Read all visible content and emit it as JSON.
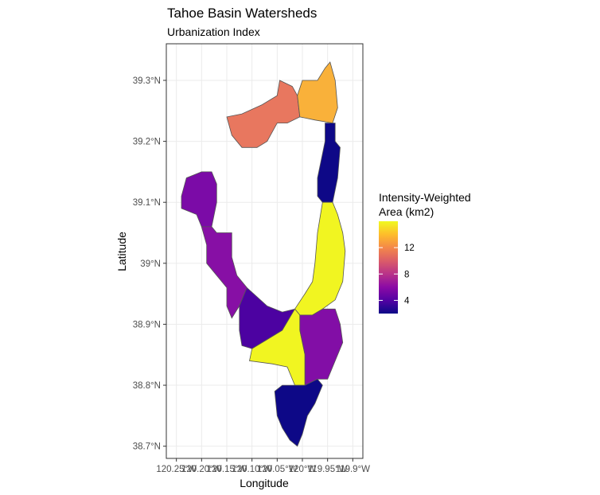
{
  "chart_data": {
    "type": "choropleth",
    "title": "Tahoe Basin Watersheds",
    "subtitle": "Urbanization Index",
    "xlabel": "Longitude",
    "ylabel": "Latitude",
    "xlim": [
      -120.27,
      -119.88
    ],
    "ylim": [
      38.68,
      39.36
    ],
    "x_ticks": [
      {
        "value": -120.25,
        "label": "120.25°W"
      },
      {
        "value": -120.2,
        "label": "120.20°W"
      },
      {
        "value": -120.15,
        "label": "120.15°W"
      },
      {
        "value": -120.1,
        "label": "120.10°W"
      },
      {
        "value": -120.05,
        "label": "120.05°W"
      },
      {
        "value": -120.0,
        "label": "120°W"
      },
      {
        "value": -119.95,
        "label": "119.95°W"
      },
      {
        "value": -119.9,
        "label": "119.9°W"
      }
    ],
    "y_ticks": [
      {
        "value": 39.3,
        "label": "39.3°N"
      },
      {
        "value": 39.2,
        "label": "39.2°N"
      },
      {
        "value": 39.1,
        "label": "39.1°N"
      },
      {
        "value": 39.0,
        "label": "39°N"
      },
      {
        "value": 38.9,
        "label": "38.9°N"
      },
      {
        "value": 38.8,
        "label": "38.8°N"
      },
      {
        "value": 38.7,
        "label": "38.7°N"
      }
    ],
    "grid": true,
    "legend": {
      "title_line1": "Intensity-Weighted",
      "title_line2": "Area (km2)",
      "placement": "right",
      "range": [
        2,
        16
      ],
      "ticks": [
        4,
        8,
        12
      ],
      "palette": [
        "#0d0887",
        "#5302a3",
        "#8b0aa5",
        "#b83289",
        "#db5c68",
        "#f48849",
        "#febd2a",
        "#f0f921"
      ]
    },
    "watersheds": [
      {
        "value": 10.5,
        "fill": "#e8775f",
        "outline": [
          [
            -120.14,
            39.21
          ],
          [
            -120.15,
            39.24
          ],
          [
            -120.12,
            39.245
          ],
          [
            -120.08,
            39.26
          ],
          [
            -120.05,
            39.275
          ],
          [
            -120.045,
            39.3
          ],
          [
            -120.02,
            39.29
          ],
          [
            -120.01,
            39.275
          ],
          [
            -120.005,
            39.24
          ],
          [
            -120.03,
            39.23
          ],
          [
            -120.05,
            39.23
          ],
          [
            -120.07,
            39.2
          ],
          [
            -120.09,
            39.19
          ],
          [
            -120.12,
            39.19
          ],
          [
            -120.14,
            39.21
          ]
        ]
      },
      {
        "value": 13.6,
        "fill": "#f9b13a",
        "outline": [
          [
            -120.005,
            39.24
          ],
          [
            -120.01,
            39.275
          ],
          [
            -120.0,
            39.3
          ],
          [
            -119.97,
            39.3
          ],
          [
            -119.955,
            39.32
          ],
          [
            -119.945,
            39.33
          ],
          [
            -119.935,
            39.3
          ],
          [
            -119.93,
            39.255
          ],
          [
            -119.94,
            39.23
          ],
          [
            -119.975,
            39.235
          ],
          [
            -120.005,
            39.24
          ]
        ]
      },
      {
        "value": 1.6,
        "fill": "#0e0887",
        "outline": [
          [
            -119.955,
            39.23
          ],
          [
            -119.935,
            39.23
          ],
          [
            -119.935,
            39.2
          ],
          [
            -119.925,
            39.19
          ],
          [
            -119.93,
            39.14
          ],
          [
            -119.94,
            39.1
          ],
          [
            -119.96,
            39.1
          ],
          [
            -119.97,
            39.11
          ],
          [
            -119.97,
            39.14
          ],
          [
            -119.955,
            39.2
          ],
          [
            -119.955,
            39.23
          ]
        ]
      },
      {
        "value": 15.8,
        "fill": "#f1f521",
        "outline": [
          [
            -119.96,
            39.1
          ],
          [
            -119.94,
            39.1
          ],
          [
            -119.93,
            39.08
          ],
          [
            -119.92,
            39.05
          ],
          [
            -119.915,
            39.02
          ],
          [
            -119.92,
            38.97
          ],
          [
            -119.935,
            38.94
          ],
          [
            -119.96,
            38.925
          ],
          [
            -119.98,
            38.915
          ],
          [
            -120.005,
            38.915
          ],
          [
            -120.015,
            38.925
          ],
          [
            -119.995,
            38.95
          ],
          [
            -119.98,
            38.97
          ],
          [
            -119.975,
            39.0
          ],
          [
            -119.97,
            39.05
          ],
          [
            -119.96,
            39.1
          ]
        ]
      },
      {
        "value": 6.0,
        "fill": "#7b0ba7",
        "outline": [
          [
            -120.2,
            39.15
          ],
          [
            -120.18,
            39.15
          ],
          [
            -120.17,
            39.13
          ],
          [
            -120.17,
            39.1
          ],
          [
            -120.18,
            39.06
          ],
          [
            -120.2,
            39.06
          ],
          [
            -120.21,
            39.08
          ],
          [
            -120.24,
            39.09
          ],
          [
            -120.24,
            39.11
          ],
          [
            -120.23,
            39.14
          ],
          [
            -120.2,
            39.15
          ]
        ]
      },
      {
        "value": 6.8,
        "fill": "#870fa5",
        "outline": [
          [
            -120.2,
            39.06
          ],
          [
            -120.18,
            39.06
          ],
          [
            -120.17,
            39.05
          ],
          [
            -120.14,
            39.05
          ],
          [
            -120.14,
            39.01
          ],
          [
            -120.13,
            38.98
          ],
          [
            -120.11,
            38.96
          ],
          [
            -120.125,
            38.93
          ],
          [
            -120.14,
            38.91
          ],
          [
            -120.15,
            38.93
          ],
          [
            -120.15,
            38.96
          ],
          [
            -120.17,
            38.98
          ],
          [
            -120.19,
            39.0
          ],
          [
            -120.19,
            39.03
          ],
          [
            -120.2,
            39.06
          ]
        ]
      },
      {
        "value": 3.0,
        "fill": "#4c02a1",
        "outline": [
          [
            -120.11,
            38.96
          ],
          [
            -120.07,
            38.93
          ],
          [
            -120.04,
            38.92
          ],
          [
            -120.015,
            38.925
          ],
          [
            -120.04,
            38.89
          ],
          [
            -120.07,
            38.875
          ],
          [
            -120.1,
            38.86
          ],
          [
            -120.12,
            38.865
          ],
          [
            -120.125,
            38.89
          ],
          [
            -120.125,
            38.93
          ],
          [
            -120.11,
            38.96
          ]
        ]
      },
      {
        "value": 16.0,
        "fill": "#f1f521",
        "outline": [
          [
            -120.015,
            38.925
          ],
          [
            -120.04,
            38.89
          ],
          [
            -120.07,
            38.875
          ],
          [
            -120.1,
            38.86
          ],
          [
            -120.105,
            38.84
          ],
          [
            -120.06,
            38.835
          ],
          [
            -120.03,
            38.83
          ],
          [
            -120.015,
            38.8
          ],
          [
            -119.995,
            38.8
          ],
          [
            -119.995,
            38.85
          ],
          [
            -120.005,
            38.89
          ],
          [
            -120.005,
            38.915
          ],
          [
            -120.015,
            38.925
          ]
        ]
      },
      {
        "value": 6.5,
        "fill": "#820ea6",
        "outline": [
          [
            -120.005,
            38.915
          ],
          [
            -119.98,
            38.915
          ],
          [
            -119.96,
            38.925
          ],
          [
            -119.935,
            38.925
          ],
          [
            -119.925,
            38.9
          ],
          [
            -119.92,
            38.87
          ],
          [
            -119.935,
            38.84
          ],
          [
            -119.95,
            38.81
          ],
          [
            -119.97,
            38.81
          ],
          [
            -119.995,
            38.8
          ],
          [
            -119.995,
            38.85
          ],
          [
            -120.005,
            38.89
          ],
          [
            -120.005,
            38.915
          ]
        ]
      },
      {
        "value": 1.4,
        "fill": "#0d0887",
        "outline": [
          [
            -119.995,
            38.8
          ],
          [
            -119.97,
            38.81
          ],
          [
            -119.96,
            38.8
          ],
          [
            -119.975,
            38.77
          ],
          [
            -119.99,
            38.75
          ],
          [
            -120.0,
            38.72
          ],
          [
            -120.01,
            38.7
          ],
          [
            -120.025,
            38.71
          ],
          [
            -120.04,
            38.73
          ],
          [
            -120.05,
            38.75
          ],
          [
            -120.055,
            38.79
          ],
          [
            -120.04,
            38.8
          ],
          [
            -120.015,
            38.8
          ],
          [
            -119.995,
            38.8
          ]
        ]
      }
    ]
  }
}
